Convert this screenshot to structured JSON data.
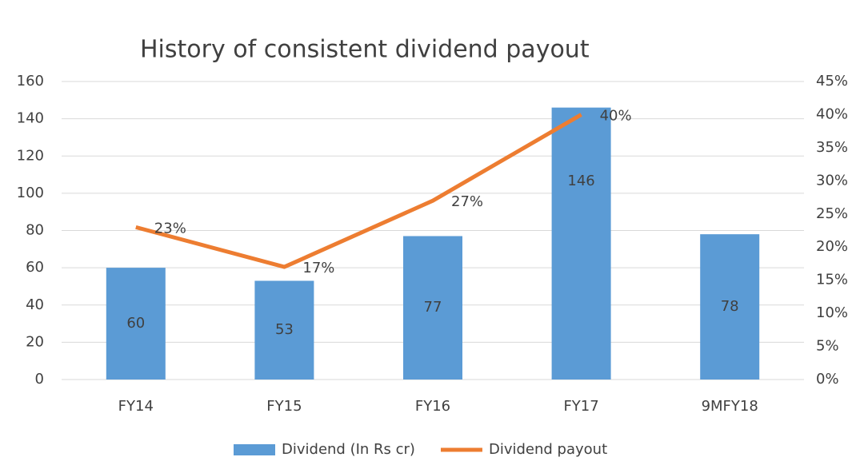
{
  "chart_data": {
    "type": "bar",
    "title": "History of consistent dividend payout",
    "categories": [
      "FY14",
      "FY15",
      "FY16",
      "FY17",
      "9MFY18"
    ],
    "series": [
      {
        "name": "Dividend (In Rs cr)",
        "type": "bar",
        "color": "#5b9bd5",
        "values": [
          60,
          53,
          77,
          146,
          78
        ]
      },
      {
        "name": "Dividend payout",
        "type": "line",
        "axis": "y2",
        "color": "#ed7d31",
        "values": [
          23,
          17,
          27,
          40,
          null
        ],
        "value_labels": [
          "23%",
          "17%",
          "27%",
          "40%",
          null
        ]
      }
    ],
    "ylim": [
      0,
      160
    ],
    "yticks": [
      0,
      20,
      40,
      60,
      80,
      100,
      120,
      140,
      160
    ],
    "y2lim": [
      0,
      45
    ],
    "y2ticks": [
      {
        "value": 0,
        "label": "0%"
      },
      {
        "value": 5,
        "label": "5%"
      },
      {
        "value": 10,
        "label": "10%"
      },
      {
        "value": 15,
        "label": "15%"
      },
      {
        "value": 20,
        "label": "20%"
      },
      {
        "value": 25,
        "label": "25%"
      },
      {
        "value": 30,
        "label": "30%"
      },
      {
        "value": 35,
        "label": "35%"
      },
      {
        "value": 40,
        "label": "40%"
      },
      {
        "value": 45,
        "label": "45%"
      }
    ],
    "grid": true,
    "legend": "bottom"
  }
}
